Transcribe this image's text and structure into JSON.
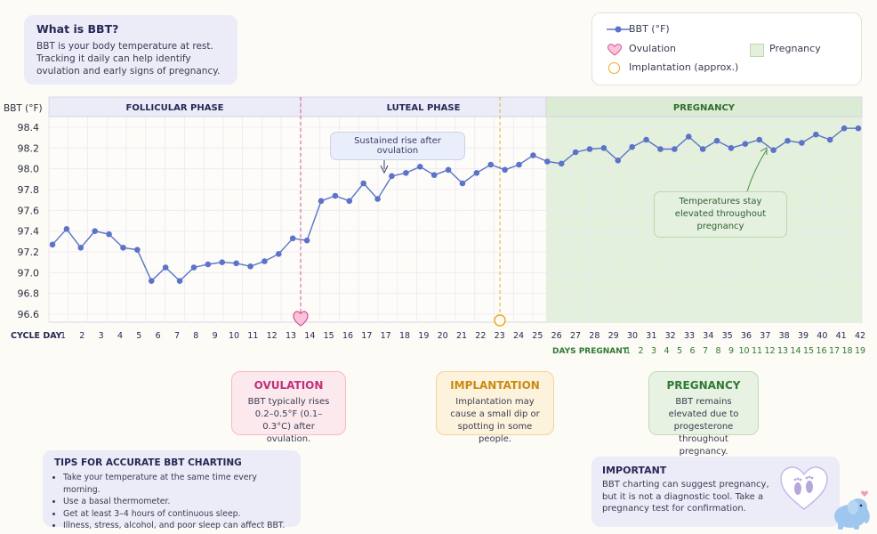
{
  "info": {
    "title": "What is BBT?",
    "text": "BBT is your body temperature at rest. Tracking it daily can help identify ovulation and early signs of pregnancy."
  },
  "legend": {
    "bbt": "BBT (°F)",
    "ovulation": "Ovulation",
    "implantation": "Implantation (approx.)",
    "pregnancy": "Pregnancy"
  },
  "annotations": {
    "rise": "Sustained rise after ovulation",
    "elevated": "Temperatures stay elevated throughout pregnancy"
  },
  "callouts": {
    "ovulation": {
      "title": "OVULATION",
      "text": "BBT typically rises 0.2–0.5°F (0.1–0.3°C) after ovulation."
    },
    "implantation": {
      "title": "IMPLANTATION",
      "text": "Implantation may cause a small dip or spotting in some people."
    },
    "pregnancy": {
      "title": "PREGNANCY",
      "text": "BBT remains elevated due to progesterone throughout pregnancy."
    }
  },
  "tips": {
    "title": "TIPS FOR ACCURATE BBT CHARTING",
    "items": [
      "Take your temperature at the same time every morning.",
      "Use a basal thermometer.",
      "Get at least 3–4 hours of continuous sleep.",
      "Illness, stress, alcohol, and poor sleep can affect BBT."
    ]
  },
  "important": {
    "title": "IMPORTANT",
    "text": "BBT charting can suggest pregnancy, but it is not a diagnostic tool. Take a pregnancy test for confirmation."
  },
  "colors": {
    "line": "#5b73c8",
    "ovulation": "#d94f93",
    "implantation": "#e7ad2c",
    "pregnancy": "#e3f0dc",
    "phase_header": "#ecebf8",
    "grid": "#ebe8f2"
  },
  "chart_data": {
    "type": "line",
    "ylabel": "BBT (°F)",
    "ylim": [
      96.6,
      98.5
    ],
    "yticks": [
      "98.4",
      "98.2",
      "98.0",
      "97.8",
      "97.6",
      "97.4",
      "97.2",
      "97.0",
      "96.8",
      "96.6"
    ],
    "xlabel": "CYCLE DAY",
    "x_tick_labels": [
      "1",
      "2",
      "3",
      "4",
      "5",
      "6",
      "7",
      "8",
      "9",
      "10",
      "11",
      "12",
      "13",
      "14",
      "15",
      "16",
      "17",
      "17",
      "18",
      "19",
      "20",
      "21",
      "22",
      "23",
      "24",
      "25",
      "26",
      "27",
      "28",
      "29",
      "30",
      "31",
      "32",
      "33",
      "34",
      "35",
      "36",
      "37",
      "38",
      "39",
      "40",
      "41",
      "42"
    ],
    "x_tick_labels_row": [
      "1",
      "2",
      "3",
      "4",
      "5",
      "6",
      "8",
      "9",
      "10",
      "12",
      "13",
      "14",
      "16",
      "17",
      "20",
      "21",
      "22",
      "23",
      "24",
      "25",
      "26",
      "27",
      "28",
      "29",
      "30",
      "31",
      "32",
      "33",
      "23",
      "22",
      "23",
      "24",
      "25",
      "26",
      "27",
      "28",
      "29",
      "30",
      "31",
      "32",
      "33",
      "34",
      "35",
      "36",
      "37",
      "38",
      "39",
      "40",
      "41",
      "42"
    ],
    "days_pregnant_label": "DAYS PREGNANT",
    "days_pregnant": [
      "1",
      "2",
      "3",
      "4",
      "5",
      "6",
      "7",
      "8",
      "9",
      "10",
      "11",
      "12",
      "13",
      "14",
      "15",
      "16",
      "17",
      "18",
      "19"
    ],
    "phases": [
      {
        "name": "FOLLICULAR PHASE"
      },
      {
        "name": "LUTEAL PHASE"
      },
      {
        "name": "PREGNANCY"
      }
    ],
    "series": [
      {
        "name": "BBT (°F)",
        "values": [
          97.27,
          97.42,
          97.24,
          97.4,
          97.37,
          97.24,
          97.22,
          96.92,
          97.05,
          96.92,
          97.05,
          97.08,
          97.1,
          97.09,
          97.06,
          97.11,
          97.18,
          97.33,
          97.31,
          97.69,
          97.74,
          97.69,
          97.86,
          97.71,
          97.93,
          97.96,
          98.02,
          97.94,
          97.99,
          97.86,
          97.96,
          98.04,
          97.99,
          98.04,
          98.13,
          98.07,
          98.05,
          98.16,
          98.19,
          98.2,
          98.08,
          98.21,
          98.28,
          98.19,
          98.19,
          98.31,
          98.19,
          98.27,
          98.2,
          98.24,
          98.28,
          98.18,
          98.27,
          98.25,
          98.33,
          98.28,
          98.39,
          98.39
        ]
      }
    ]
  }
}
